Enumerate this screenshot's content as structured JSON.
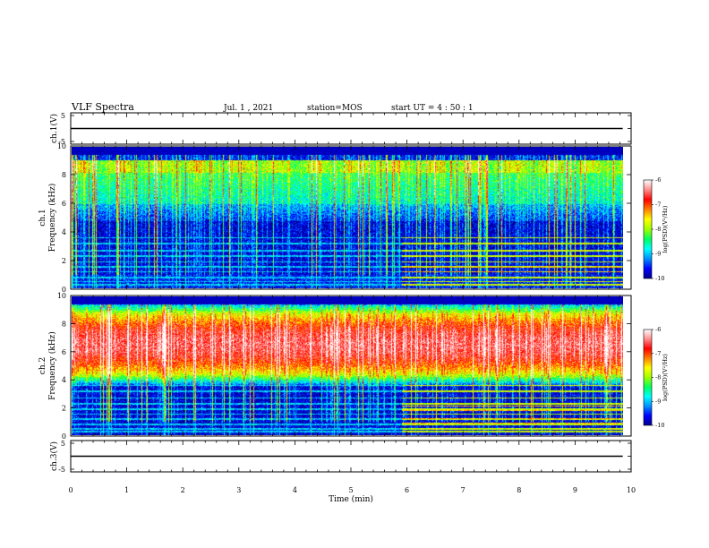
{
  "header": {
    "title": "VLF Spectra",
    "date": "Jul. 1 , 2021",
    "station": "station=MOS",
    "start": "start UT = 4 : 50 : 1"
  },
  "chart_data": [
    {
      "type": "line",
      "panel": "ch1-waveform",
      "ylabel": "ch.1(V)",
      "ylim": [
        -5,
        5
      ],
      "ytick_labels": [
        "5",
        "-5"
      ],
      "series": [
        {
          "values": [
            0,
            0
          ]
        }
      ],
      "x": [
        0,
        9.85
      ],
      "xlim": [
        0,
        10
      ]
    },
    {
      "type": "heatmap",
      "panel": "ch1-spectrogram",
      "ylabel": "ch.1\nFrequency (kHz)",
      "ylim": [
        0,
        10
      ],
      "yticks": [
        0,
        2,
        4,
        6,
        8,
        10
      ],
      "xlim": [
        0,
        10
      ],
      "data_end_min": 9.85,
      "colorbar": {
        "label": "log(PSD)(V²/Hz)",
        "range": [
          -10,
          -6
        ],
        "ticks": [
          "-10",
          "-9",
          "-8",
          "-7",
          "-6"
        ],
        "colors": [
          "#00008c",
          "#0000ff",
          "#0090ff",
          "#00ffff",
          "#00ff60",
          "#a0ff00",
          "#ffff00",
          "#ff8000",
          "#ff0000",
          "#ff8c8c",
          "#ffffff"
        ]
      }
    },
    {
      "type": "heatmap",
      "panel": "ch2-spectrogram",
      "ylabel": "ch.2\nFrequency (kHz)",
      "ylim": [
        0,
        10
      ],
      "yticks": [
        0,
        2,
        4,
        6,
        8,
        10
      ],
      "xlim": [
        0,
        10
      ],
      "data_end_min": 9.85,
      "colorbar": {
        "label": "log(PSD)(V²/Hz)",
        "range": [
          -10,
          -6
        ],
        "ticks": [
          "-10",
          "-9",
          "-8",
          "-7",
          "-6"
        ],
        "colors": [
          "#00008c",
          "#0000ff",
          "#0090ff",
          "#00ffff",
          "#00ff60",
          "#a0ff00",
          "#ffff00",
          "#ff8000",
          "#ff0000",
          "#ff8c8c",
          "#ffffff"
        ]
      }
    },
    {
      "type": "line",
      "panel": "ch3-waveform",
      "ylabel": "ch.3(V)",
      "ylim": [
        -5,
        5
      ],
      "ytick_labels": [
        "5",
        "-5"
      ],
      "series": [
        {
          "values": [
            0,
            0
          ]
        }
      ],
      "x": [
        0,
        9.85
      ],
      "xlim": [
        0,
        10
      ]
    }
  ],
  "xaxis": {
    "label": "Time (min)",
    "ticks": [
      "0",
      "1",
      "2",
      "3",
      "4",
      "5",
      "6",
      "7",
      "8",
      "9",
      "10"
    ]
  }
}
